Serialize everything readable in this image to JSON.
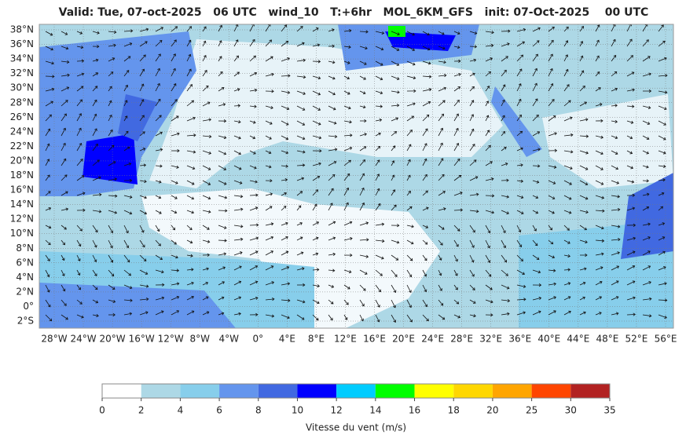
{
  "title": "Valid: Tue, 07-oct-2025   06 UTC   wind_10   T:+6hr   MOL_6KM_GFS   init: 07-Oct-2025    00 UTC",
  "lat_labels": [
    "38°N",
    "36°N",
    "34°N",
    "32°N",
    "30°N",
    "28°N",
    "26°N",
    "24°N",
    "22°N",
    "20°N",
    "18°N",
    "16°N",
    "14°N",
    "12°N",
    "10°N",
    "8°N",
    "6°N",
    "4°N",
    "2°N",
    "0°",
    "2°S"
  ],
  "lon_labels": [
    "28°W",
    "24°W",
    "20°W",
    "16°W",
    "12°W",
    "8°W",
    "4°W",
    "0°",
    "4°E",
    "8°E",
    "12°E",
    "16°E",
    "20°E",
    "24°E",
    "28°E",
    "32°E",
    "36°E",
    "40°E",
    "44°E",
    "48°E",
    "52°E",
    "56°E"
  ],
  "colorbar": {
    "ticks": [
      "0",
      "2",
      "4",
      "6",
      "8",
      "10",
      "12",
      "14",
      "16",
      "18",
      "20",
      "25",
      "30",
      "35"
    ],
    "colors": [
      "#ffffff",
      "#add8e6",
      "#87ceeb",
      "#6495ed",
      "#4169e1",
      "#0000ff",
      "#00ccff",
      "#00ff00",
      "#ffff00",
      "#ffd700",
      "#ffa500",
      "#ff4500",
      "#b22222"
    ],
    "label": "Vitesse du vent (m/s)"
  }
}
